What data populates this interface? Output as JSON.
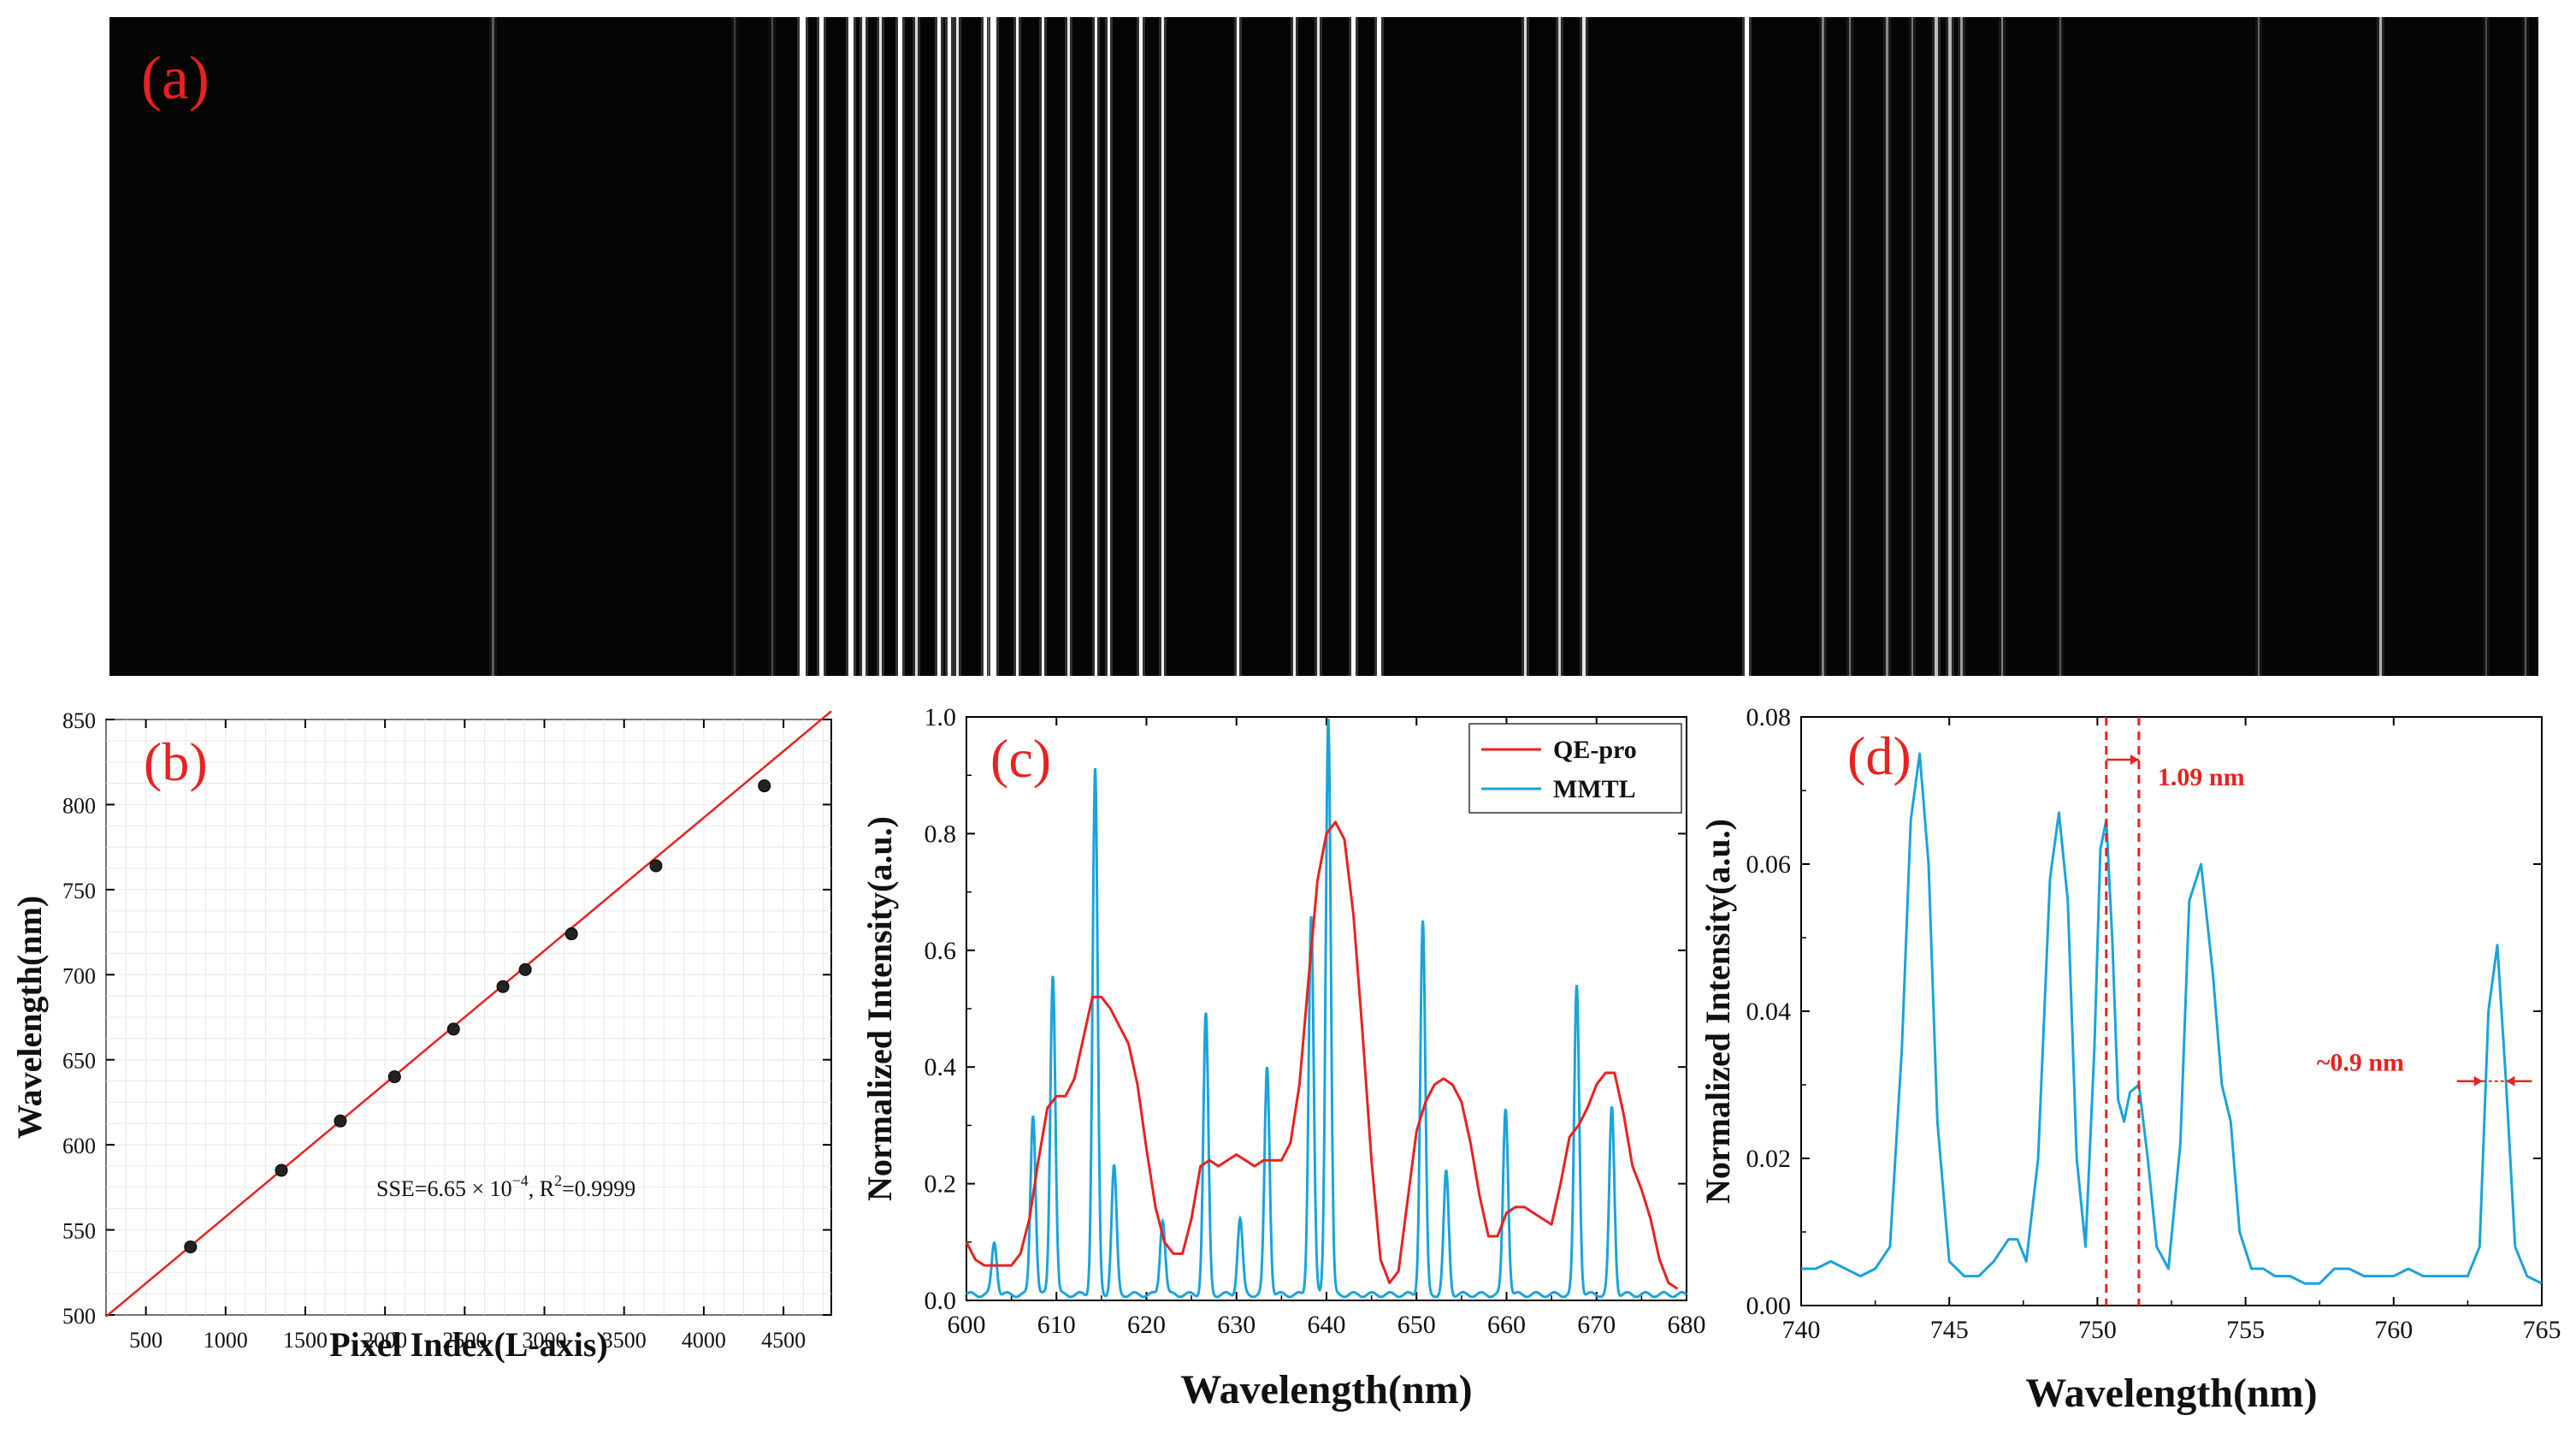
{
  "chart_data": [
    {
      "panel": "a",
      "type": "other",
      "description_label": "(a)",
      "title": "",
      "content": "raw spectral image: vertical emission lines on black background"
    },
    {
      "panel": "b",
      "type": "scatter",
      "label": "(b)",
      "xlabel": "Pixel Index(L-axis)",
      "ylabel": "Wavelength(nm)",
      "xlim": [
        250,
        4800
      ],
      "ylim": [
        500,
        850
      ],
      "xticks": [
        500,
        1000,
        1500,
        2000,
        2500,
        3000,
        3500,
        4000,
        4500
      ],
      "yticks": [
        500,
        550,
        600,
        650,
        700,
        750,
        800,
        850
      ],
      "points": {
        "x": [
          780,
          1350,
          1720,
          2060,
          2430,
          2740,
          2880,
          3170,
          3700,
          4380
        ],
        "y": [
          540,
          585,
          614,
          640,
          668,
          693,
          703,
          724,
          764,
          811
        ]
      },
      "fit_line": {
        "slope": 0.0782,
        "intercept": 479.5,
        "color": "#e8221f"
      },
      "annotation": "SSE=6.65 × 10",
      "annotation_sup": "−4",
      "annotation_r2": ", R",
      "annotation_r2_sup": "2",
      "annotation_r2_val": "=0.9999"
    },
    {
      "panel": "c",
      "type": "line",
      "label": "(c)",
      "xlabel": "Wavelength(nm)",
      "ylabel": "Normalized Intensity(a.u.)",
      "xlim": [
        600,
        680
      ],
      "ylim": [
        0,
        1.0
      ],
      "xticks": [
        600,
        610,
        620,
        630,
        640,
        650,
        660,
        670,
        680
      ],
      "yticks": [
        0.0,
        0.2,
        0.4,
        0.6,
        0.8,
        1.0
      ],
      "legend": [
        {
          "name": "QE-pro",
          "color": "#e8221f"
        },
        {
          "name": "MMTL",
          "color": "#1aa3dc"
        }
      ],
      "series": [
        {
          "name": "QE-pro",
          "color": "#e8221f",
          "x": [
            600,
            601,
            602,
            603,
            604,
            605,
            606,
            607,
            608,
            609,
            610,
            611,
            612,
            613,
            614,
            615,
            616,
            617,
            618,
            619,
            620,
            621,
            622,
            623,
            624,
            625,
            626,
            627,
            628,
            629,
            630,
            631,
            632,
            633,
            634,
            635,
            636,
            637,
            638,
            639,
            640,
            641,
            642,
            643,
            644,
            645,
            646,
            647,
            648,
            649,
            650,
            651,
            652,
            653,
            654,
            655,
            656,
            657,
            658,
            659,
            660,
            661,
            662,
            663,
            664,
            665,
            666,
            667,
            668,
            669,
            670,
            671,
            672,
            673,
            674,
            675,
            676,
            677,
            678,
            679
          ],
          "values": [
            0.1,
            0.07,
            0.06,
            0.06,
            0.06,
            0.06,
            0.08,
            0.14,
            0.24,
            0.33,
            0.35,
            0.35,
            0.38,
            0.45,
            0.52,
            0.52,
            0.5,
            0.47,
            0.44,
            0.37,
            0.26,
            0.16,
            0.1,
            0.08,
            0.08,
            0.14,
            0.23,
            0.24,
            0.23,
            0.24,
            0.25,
            0.24,
            0.23,
            0.24,
            0.24,
            0.24,
            0.27,
            0.37,
            0.55,
            0.72,
            0.8,
            0.82,
            0.79,
            0.66,
            0.46,
            0.24,
            0.07,
            0.03,
            0.05,
            0.17,
            0.29,
            0.34,
            0.37,
            0.38,
            0.37,
            0.34,
            0.27,
            0.18,
            0.11,
            0.11,
            0.15,
            0.16,
            0.16,
            0.15,
            0.14,
            0.13,
            0.2,
            0.28,
            0.3,
            0.33,
            0.37,
            0.39,
            0.39,
            0.32,
            0.23,
            0.19,
            0.14,
            0.07,
            0.03,
            0.02
          ]
        },
        {
          "name": "MMTL",
          "color": "#1aa3dc",
          "peaks": [
            {
              "x": 603.1,
              "h": 0.09
            },
            {
              "x": 607.4,
              "h": 0.31
            },
            {
              "x": 609.6,
              "h": 0.55
            },
            {
              "x": 614.3,
              "h": 0.9
            },
            {
              "x": 616.4,
              "h": 0.22
            },
            {
              "x": 621.8,
              "h": 0.13
            },
            {
              "x": 626.6,
              "h": 0.48
            },
            {
              "x": 630.4,
              "h": 0.13
            },
            {
              "x": 633.4,
              "h": 0.39
            },
            {
              "x": 638.3,
              "h": 0.65
            },
            {
              "x": 640.2,
              "h": 0.99
            },
            {
              "x": 650.7,
              "h": 0.64
            },
            {
              "x": 653.3,
              "h": 0.21
            },
            {
              "x": 659.9,
              "h": 0.32
            },
            {
              "x": 667.8,
              "h": 0.53
            },
            {
              "x": 671.7,
              "h": 0.32
            }
          ],
          "baseline": 0.01
        }
      ]
    },
    {
      "panel": "d",
      "type": "line",
      "label": "(d)",
      "xlabel": "Wavelength(nm)",
      "ylabel": "Normalized Intensity(a.u.)",
      "xlim": [
        740,
        765
      ],
      "ylim": [
        0,
        0.08
      ],
      "xticks": [
        740,
        745,
        750,
        755,
        760,
        765
      ],
      "yticks": [
        0.0,
        0.02,
        0.04,
        0.06,
        0.08
      ],
      "annotations": [
        "1.09 nm",
        "~0.9 nm"
      ],
      "dashed_lines_x": [
        750.3,
        751.4
      ],
      "series": [
        {
          "name": "MMTL",
          "color": "#1aa3dc",
          "x": [
            740,
            740.5,
            741,
            741.5,
            742,
            742.5,
            743,
            743.4,
            743.7,
            744,
            744.3,
            744.6,
            745,
            745.5,
            746,
            746.5,
            747,
            747.3,
            747.6,
            748,
            748.4,
            748.7,
            749,
            749.3,
            749.6,
            749.9,
            750.1,
            750.3,
            750.5,
            750.7,
            750.9,
            751.1,
            751.4,
            751.7,
            752,
            752.4,
            752.8,
            753.1,
            753.5,
            753.9,
            754.2,
            754.5,
            754.8,
            755.2,
            755.6,
            756,
            756.5,
            757,
            757.5,
            758,
            758.5,
            759,
            759.5,
            760,
            760.5,
            761,
            761.5,
            762,
            762.5,
            762.9,
            763.2,
            763.5,
            763.8,
            764.1,
            764.5,
            765
          ],
          "values": [
            0.005,
            0.005,
            0.006,
            0.005,
            0.004,
            0.005,
            0.008,
            0.035,
            0.066,
            0.075,
            0.06,
            0.025,
            0.006,
            0.004,
            0.004,
            0.006,
            0.009,
            0.009,
            0.006,
            0.02,
            0.058,
            0.067,
            0.055,
            0.02,
            0.008,
            0.035,
            0.062,
            0.066,
            0.05,
            0.028,
            0.025,
            0.029,
            0.03,
            0.02,
            0.008,
            0.005,
            0.022,
            0.055,
            0.06,
            0.045,
            0.03,
            0.025,
            0.01,
            0.005,
            0.005,
            0.004,
            0.004,
            0.003,
            0.003,
            0.005,
            0.005,
            0.004,
            0.004,
            0.004,
            0.005,
            0.004,
            0.004,
            0.004,
            0.004,
            0.008,
            0.04,
            0.049,
            0.03,
            0.008,
            0.004,
            0.003
          ]
        }
      ]
    }
  ],
  "colors": {
    "label": "#e8221f",
    "fit": "#e8221f",
    "mmtl": "#1aa3dc",
    "qepro": "#e8221f"
  }
}
